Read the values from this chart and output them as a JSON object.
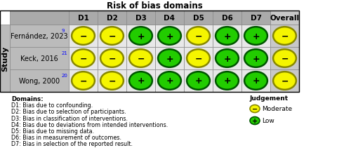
{
  "title": "Risk of bias domains",
  "ylabel": "Study",
  "columns": [
    "D1",
    "D2",
    "D3",
    "D4",
    "D5",
    "D6",
    "D7",
    "Overall"
  ],
  "studies": [
    {
      "name": "Fernández, 2023",
      "superscript": "9"
    },
    {
      "name": "Keck, 2016",
      "superscript": "21"
    },
    {
      "name": "Wong, 2000",
      "superscript": "20"
    }
  ],
  "data": [
    [
      "M",
      "M",
      "L",
      "L",
      "M",
      "L",
      "L",
      "M"
    ],
    [
      "M",
      "M",
      "M",
      "L",
      "M",
      "L",
      "L",
      "M"
    ],
    [
      "M",
      "M",
      "L",
      "L",
      "L",
      "L",
      "L",
      "M"
    ]
  ],
  "color_moderate": "#F5F500",
  "color_low": "#22CC00",
  "color_moderate_edge": "#888800",
  "color_low_edge": "#005500",
  "header_bg": "#AAAAAA",
  "study_bg": "#BBBBBB",
  "cell_bg_light": "#E8E8E8",
  "cell_bg_dark": "#C8C8C8",
  "overall_bg": "#C8C8C8",
  "grid_color": "#888888",
  "domain_texts": [
    "Domains:",
    "D1: Bias due to confounding.",
    "D2: Bias due to selection of participants.",
    "D3: Bias in classification of interventions.",
    "D4: Bias due to deviations from intended interventions.",
    "D5: Bias due to missing data.",
    "D6: Bias in measurement of outcomes.",
    "D7: Bias in selection of the reported result."
  ],
  "judgement_title": "Judgement",
  "legend_moderate_label": "Moderate",
  "legend_low_label": "Low",
  "figsize": [
    5.0,
    2.32
  ],
  "dpi": 100
}
